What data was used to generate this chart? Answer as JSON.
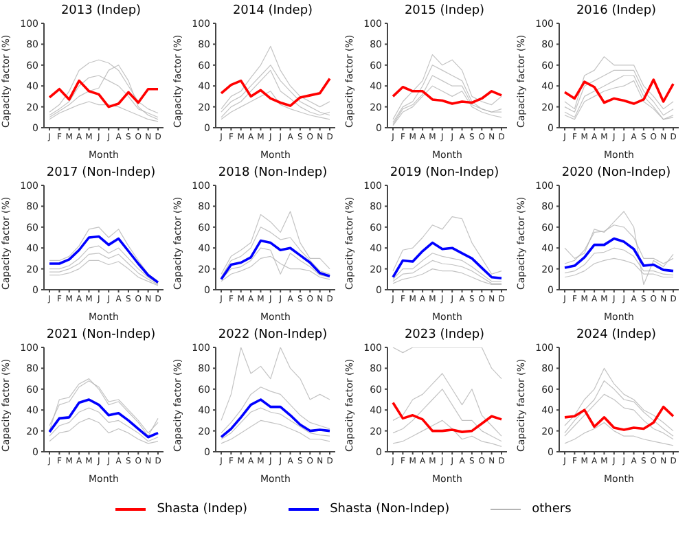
{
  "chart_data": [
    {
      "type": "line",
      "title": "2013 (Indep)",
      "xlabel": "Month",
      "ylabel": "Capacity factor (%)",
      "categories": [
        "J",
        "F",
        "M",
        "A",
        "M",
        "J",
        "J",
        "A",
        "S",
        "O",
        "N",
        "D"
      ],
      "ylim": [
        0,
        100
      ],
      "yticks": [
        0,
        20,
        40,
        60,
        80,
        100
      ],
      "grid": false,
      "marker": "none",
      "legend": "bottom",
      "series": [
        {
          "name": "others",
          "color": "#b4b4b4",
          "values": [
            8,
            14,
            18,
            22,
            25,
            22,
            22,
            20,
            16,
            12,
            8,
            6
          ]
        },
        {
          "color": "#b4b4b4",
          "values": [
            12,
            18,
            25,
            40,
            48,
            50,
            45,
            40,
            30,
            18,
            14,
            10
          ]
        },
        {
          "color": "#b4b4b4",
          "values": [
            15,
            22,
            35,
            55,
            62,
            65,
            62,
            55,
            40,
            25,
            18,
            14
          ]
        },
        {
          "color": "#b4b4b4",
          "values": [
            10,
            16,
            22,
            30,
            35,
            38,
            55,
            60,
            45,
            20,
            12,
            8
          ]
        },
        {
          "name": "Shasta (Indep)",
          "color": "#ff0000",
          "values": [
            29,
            37,
            27,
            45,
            35,
            32,
            20,
            23,
            34,
            24,
            37,
            37
          ]
        }
      ]
    },
    {
      "type": "line",
      "title": "2014 (Indep)",
      "xlabel": "Month",
      "ylabel": "Capacity factor (%)",
      "categories": [
        "J",
        "F",
        "M",
        "A",
        "M",
        "J",
        "J",
        "A",
        "S",
        "O",
        "N",
        "D"
      ],
      "ylim": [
        0,
        100
      ],
      "yticks": [
        0,
        20,
        40,
        60,
        80,
        100
      ],
      "grid": false,
      "marker": "none",
      "legend": "bottom",
      "series": [
        {
          "name": "others",
          "color": "#b4b4b4",
          "values": [
            8,
            15,
            20,
            25,
            30,
            35,
            22,
            18,
            15,
            12,
            10,
            8
          ]
        },
        {
          "color": "#b4b4b4",
          "values": [
            15,
            25,
            30,
            40,
            50,
            60,
            45,
            35,
            25,
            20,
            15,
            12
          ]
        },
        {
          "color": "#b4b4b4",
          "values": [
            18,
            30,
            35,
            48,
            60,
            78,
            55,
            40,
            30,
            25,
            20,
            25
          ]
        },
        {
          "color": "#b4b4b4",
          "values": [
            10,
            20,
            25,
            35,
            45,
            55,
            35,
            28,
            20,
            15,
            12,
            15
          ]
        },
        {
          "name": "Shasta (Indep)",
          "color": "#ff0000",
          "values": [
            33,
            41,
            45,
            30,
            36,
            28,
            24,
            21,
            29,
            31,
            33,
            47
          ]
        }
      ]
    },
    {
      "type": "line",
      "title": "2015 (Indep)",
      "xlabel": "Month",
      "ylabel": "Capacity factor (%)",
      "categories": [
        "J",
        "F",
        "M",
        "A",
        "M",
        "J",
        "J",
        "A",
        "S",
        "O",
        "N",
        "D"
      ],
      "ylim": [
        0,
        100
      ],
      "yticks": [
        0,
        20,
        40,
        60,
        80,
        100
      ],
      "grid": false,
      "marker": "none",
      "legend": "bottom",
      "series": [
        {
          "name": "others",
          "color": "#b4b4b4",
          "values": [
            2,
            15,
            20,
            30,
            40,
            35,
            30,
            35,
            20,
            15,
            12,
            10
          ]
        },
        {
          "color": "#b4b4b4",
          "values": [
            5,
            20,
            25,
            40,
            60,
            55,
            50,
            45,
            25,
            18,
            15,
            18
          ]
        },
        {
          "color": "#b4b4b4",
          "values": [
            8,
            25,
            35,
            45,
            70,
            60,
            65,
            55,
            30,
            25,
            22,
            30
          ]
        },
        {
          "color": "#b4b4b4",
          "values": [
            3,
            18,
            22,
            32,
            50,
            45,
            40,
            40,
            22,
            18,
            15,
            15
          ]
        },
        {
          "name": "Shasta (Indep)",
          "color": "#ff0000",
          "values": [
            30,
            39,
            35,
            35,
            27,
            26,
            23,
            25,
            24,
            28,
            35,
            31
          ]
        }
      ]
    },
    {
      "type": "line",
      "title": "2016 (Indep)",
      "xlabel": "Month",
      "ylabel": "Capacity factor (%)",
      "categories": [
        "J",
        "F",
        "M",
        "A",
        "M",
        "J",
        "J",
        "A",
        "S",
        "O",
        "N",
        "D"
      ],
      "ylim": [
        0,
        100
      ],
      "yticks": [
        0,
        20,
        40,
        60,
        80,
        100
      ],
      "grid": false,
      "marker": "none",
      "legend": "bottom",
      "series": [
        {
          "name": "others",
          "color": "#b4b4b4",
          "values": [
            15,
            10,
            30,
            35,
            40,
            45,
            50,
            50,
            30,
            20,
            8,
            12
          ]
        },
        {
          "color": "#b4b4b4",
          "values": [
            20,
            15,
            40,
            45,
            50,
            55,
            55,
            55,
            35,
            25,
            12,
            18
          ]
        },
        {
          "color": "#b4b4b4",
          "values": [
            25,
            18,
            50,
            55,
            68,
            60,
            60,
            60,
            40,
            30,
            18,
            25
          ]
        },
        {
          "color": "#b4b4b4",
          "values": [
            12,
            8,
            25,
            30,
            35,
            38,
            40,
            45,
            25,
            18,
            8,
            10
          ]
        },
        {
          "name": "Shasta (Indep)",
          "color": "#ff0000",
          "values": [
            34,
            28,
            44,
            39,
            24,
            28,
            26,
            23,
            27,
            46,
            25,
            42
          ]
        }
      ]
    },
    {
      "type": "line",
      "title": "2017 (Non-Indep)",
      "xlabel": "Month",
      "ylabel": "Capacity factor (%)",
      "categories": [
        "J",
        "F",
        "M",
        "A",
        "M",
        "J",
        "J",
        "A",
        "S",
        "O",
        "N",
        "D"
      ],
      "ylim": [
        0,
        100
      ],
      "yticks": [
        0,
        20,
        40,
        60,
        80,
        100
      ],
      "grid": false,
      "marker": "none",
      "legend": "bottom",
      "series": [
        {
          "name": "others",
          "color": "#b4b4b4",
          "values": [
            14,
            14,
            16,
            20,
            28,
            28,
            24,
            27,
            20,
            12,
            8,
            4
          ]
        },
        {
          "color": "#b4b4b4",
          "values": [
            20,
            20,
            23,
            30,
            40,
            42,
            35,
            40,
            30,
            20,
            12,
            6
          ]
        },
        {
          "color": "#b4b4b4",
          "values": [
            28,
            28,
            32,
            42,
            58,
            60,
            50,
            58,
            42,
            28,
            15,
            8
          ]
        },
        {
          "color": "#b4b4b4",
          "values": [
            17,
            17,
            20,
            25,
            34,
            35,
            30,
            34,
            25,
            16,
            10,
            5
          ]
        },
        {
          "name": "Shasta (Non-Indep)",
          "color": "#0000ff",
          "values": [
            25,
            25,
            29,
            38,
            50,
            51,
            43,
            49,
            37,
            25,
            14,
            7
          ]
        }
      ]
    },
    {
      "type": "line",
      "title": "2018 (Non-Indep)",
      "xlabel": "Month",
      "ylabel": "Capacity factor (%)",
      "categories": [
        "J",
        "F",
        "M",
        "A",
        "M",
        "J",
        "J",
        "A",
        "S",
        "O",
        "N",
        "D"
      ],
      "ylim": [
        0,
        100
      ],
      "yticks": [
        0,
        20,
        40,
        60,
        80,
        100
      ],
      "grid": false,
      "marker": "none",
      "legend": "bottom",
      "series": [
        {
          "name": "others",
          "color": "#b4b4b4",
          "values": [
            8,
            15,
            18,
            22,
            30,
            32,
            25,
            20,
            20,
            18,
            12,
            10
          ]
        },
        {
          "color": "#b4b4b4",
          "values": [
            12,
            28,
            32,
            40,
            60,
            55,
            48,
            50,
            38,
            28,
            18,
            15
          ]
        },
        {
          "color": "#b4b4b4",
          "values": [
            15,
            32,
            38,
            45,
            72,
            65,
            55,
            75,
            45,
            30,
            30,
            20
          ]
        },
        {
          "color": "#b4b4b4",
          "values": [
            10,
            20,
            22,
            28,
            40,
            38,
            15,
            35,
            28,
            22,
            14,
            12
          ]
        },
        {
          "name": "Shasta (Non-Indep)",
          "color": "#0000ff",
          "values": [
            10,
            24,
            26,
            31,
            47,
            45,
            38,
            40,
            33,
            26,
            16,
            13
          ]
        }
      ]
    },
    {
      "type": "line",
      "title": "2019 (Non-Indep)",
      "xlabel": "Month",
      "ylabel": "Capacity factor (%)",
      "categories": [
        "J",
        "F",
        "M",
        "A",
        "M",
        "J",
        "J",
        "A",
        "S",
        "O",
        "N",
        "D"
      ],
      "ylim": [
        0,
        100
      ],
      "yticks": [
        0,
        20,
        40,
        60,
        80,
        100
      ],
      "grid": false,
      "marker": "none",
      "legend": "bottom",
      "series": [
        {
          "name": "others",
          "color": "#b4b4b4",
          "values": [
            6,
            10,
            12,
            15,
            20,
            18,
            18,
            16,
            12,
            8,
            5,
            5
          ]
        },
        {
          "color": "#b4b4b4",
          "values": [
            10,
            20,
            20,
            28,
            35,
            32,
            30,
            28,
            22,
            15,
            8,
            8
          ]
        },
        {
          "color": "#b4b4b4",
          "values": [
            18,
            38,
            40,
            50,
            62,
            58,
            70,
            68,
            45,
            30,
            15,
            18
          ]
        },
        {
          "color": "#b4b4b4",
          "values": [
            8,
            15,
            16,
            22,
            28,
            25,
            24,
            22,
            18,
            12,
            6,
            6
          ]
        },
        {
          "name": "Shasta (Non-Indep)",
          "color": "#0000ff",
          "values": [
            12,
            28,
            27,
            37,
            45,
            39,
            40,
            35,
            30,
            21,
            12,
            11
          ]
        }
      ]
    },
    {
      "type": "line",
      "title": "2020 (Non-Indep)",
      "xlabel": "Month",
      "ylabel": "Capacity factor (%)",
      "categories": [
        "J",
        "F",
        "M",
        "A",
        "M",
        "J",
        "J",
        "A",
        "S",
        "O",
        "N",
        "D"
      ],
      "ylim": [
        0,
        100
      ],
      "yticks": [
        0,
        20,
        40,
        60,
        80,
        100
      ],
      "grid": false,
      "marker": "none",
      "legend": "bottom",
      "series": [
        {
          "name": "others",
          "color": "#b4b4b4",
          "values": [
            12,
            14,
            18,
            25,
            28,
            30,
            28,
            25,
            15,
            15,
            12,
            12
          ]
        },
        {
          "color": "#b4b4b4",
          "values": [
            16,
            18,
            24,
            35,
            36,
            40,
            38,
            32,
            18,
            18,
            15,
            14
          ]
        },
        {
          "color": "#b4b4b4",
          "values": [
            25,
            28,
            38,
            55,
            56,
            62,
            60,
            50,
            30,
            30,
            25,
            30
          ]
        },
        {
          "color": "#b4b4b4",
          "values": [
            40,
            30,
            35,
            58,
            55,
            65,
            75,
            60,
            5,
            28,
            22,
            34
          ]
        },
        {
          "name": "Shasta (Non-Indep)",
          "color": "#0000ff",
          "values": [
            21,
            23,
            31,
            43,
            43,
            49,
            46,
            39,
            23,
            24,
            19,
            18
          ]
        }
      ]
    },
    {
      "type": "line",
      "title": "2021 (Non-Indep)",
      "xlabel": "Month",
      "ylabel": "Capacity factor (%)",
      "categories": [
        "J",
        "F",
        "M",
        "A",
        "M",
        "J",
        "J",
        "A",
        "S",
        "O",
        "N",
        "D"
      ],
      "ylim": [
        0,
        100
      ],
      "yticks": [
        0,
        20,
        40,
        60,
        80,
        100
      ],
      "grid": false,
      "marker": "none",
      "legend": "bottom",
      "series": [
        {
          "name": "others",
          "color": "#b4b4b4",
          "values": [
            10,
            18,
            20,
            28,
            32,
            28,
            18,
            22,
            18,
            12,
            8,
            10
          ]
        },
        {
          "color": "#b4b4b4",
          "values": [
            15,
            25,
            28,
            38,
            42,
            38,
            28,
            30,
            24,
            18,
            10,
            14
          ]
        },
        {
          "color": "#b4b4b4",
          "values": [
            25,
            45,
            48,
            62,
            68,
            62,
            48,
            50,
            40,
            30,
            18,
            28
          ]
        },
        {
          "color": "#b4b4b4",
          "values": [
            20,
            50,
            52,
            65,
            70,
            60,
            45,
            48,
            38,
            28,
            15,
            32
          ]
        },
        {
          "name": "Shasta (Non-Indep)",
          "color": "#0000ff",
          "values": [
            19,
            32,
            33,
            47,
            50,
            45,
            35,
            37,
            30,
            22,
            14,
            18
          ]
        }
      ]
    },
    {
      "type": "line",
      "title": "2022 (Non-Indep)",
      "xlabel": "Month",
      "ylabel": "Capacity factor (%)",
      "categories": [
        "J",
        "F",
        "M",
        "A",
        "M",
        "J",
        "J",
        "A",
        "S",
        "O",
        "N",
        "D"
      ],
      "ylim": [
        0,
        100
      ],
      "yticks": [
        0,
        20,
        40,
        60,
        80,
        100
      ],
      "grid": false,
      "marker": "none",
      "legend": "bottom",
      "series": [
        {
          "name": "others",
          "color": "#b4b4b4",
          "values": [
            8,
            12,
            18,
            24,
            30,
            28,
            26,
            22,
            18,
            12,
            12,
            10
          ]
        },
        {
          "color": "#b4b4b4",
          "values": [
            12,
            18,
            28,
            38,
            42,
            38,
            36,
            30,
            24,
            18,
            16,
            15
          ]
        },
        {
          "color": "#b4b4b4",
          "values": [
            18,
            28,
            40,
            55,
            62,
            58,
            55,
            45,
            35,
            28,
            25,
            22
          ]
        },
        {
          "color": "#b4b4b4",
          "values": [
            30,
            55,
            100,
            75,
            82,
            70,
            100,
            80,
            70,
            50,
            55,
            50
          ]
        },
        {
          "name": "Shasta (Non-Indep)",
          "color": "#0000ff",
          "values": [
            14,
            22,
            33,
            45,
            50,
            43,
            43,
            35,
            26,
            20,
            21,
            20
          ]
        }
      ]
    },
    {
      "type": "line",
      "title": "2023 (Indep)",
      "xlabel": "Month",
      "ylabel": "Capacity factor (%)",
      "categories": [
        "J",
        "F",
        "M",
        "A",
        "M",
        "J",
        "J",
        "A",
        "S",
        "O",
        "N",
        "D"
      ],
      "ylim": [
        0,
        100
      ],
      "yticks": [
        0,
        20,
        40,
        60,
        80,
        100
      ],
      "grid": false,
      "marker": "none",
      "legend": "bottom",
      "series": [
        {
          "name": "others",
          "color": "#b4b4b4",
          "values": [
            8,
            10,
            15,
            20,
            25,
            30,
            22,
            12,
            15,
            10,
            8,
            5
          ]
        },
        {
          "color": "#b4b4b4",
          "values": [
            18,
            22,
            30,
            40,
            50,
            60,
            45,
            30,
            30,
            20,
            15,
            10
          ]
        },
        {
          "color": "#b4b4b4",
          "values": [
            30,
            35,
            50,
            55,
            65,
            75,
            60,
            45,
            60,
            35,
            25,
            15
          ]
        },
        {
          "color": "#b4b4b4",
          "values": [
            100,
            95,
            100,
            100,
            100,
            100,
            100,
            100,
            100,
            100,
            80,
            70
          ]
        },
        {
          "name": "Shasta (Indep)",
          "color": "#ff0000",
          "values": [
            47,
            32,
            35,
            31,
            20,
            20,
            21,
            19,
            20,
            27,
            34,
            31
          ]
        }
      ]
    },
    {
      "type": "line",
      "title": "2024 (Indep)",
      "xlabel": "Month",
      "ylabel": "Capacity factor (%)",
      "categories": [
        "J",
        "F",
        "M",
        "A",
        "M",
        "J",
        "J",
        "A",
        "S",
        "O",
        "N",
        "D"
      ],
      "ylim": [
        0,
        100
      ],
      "yticks": [
        0,
        20,
        40,
        60,
        80,
        100
      ],
      "grid": false,
      "marker": "none",
      "legend": "bottom",
      "series": [
        {
          "name": "others",
          "color": "#b4b4b4",
          "values": [
            8,
            12,
            18,
            22,
            28,
            20,
            15,
            15,
            12,
            10,
            8,
            6
          ]
        },
        {
          "color": "#b4b4b4",
          "values": [
            15,
            25,
            35,
            45,
            55,
            50,
            42,
            40,
            30,
            22,
            18,
            12
          ]
        },
        {
          "color": "#b4b4b4",
          "values": [
            25,
            35,
            50,
            60,
            80,
            65,
            55,
            50,
            40,
            35,
            28,
            20
          ]
        },
        {
          "color": "#b4b4b4",
          "values": [
            18,
            30,
            40,
            50,
            68,
            60,
            50,
            48,
            38,
            30,
            22,
            15
          ]
        },
        {
          "name": "Shasta (Indep)",
          "color": "#ff0000",
          "values": [
            33,
            34,
            40,
            24,
            33,
            23,
            21,
            23,
            22,
            28,
            43,
            34
          ]
        }
      ]
    }
  ]
}
